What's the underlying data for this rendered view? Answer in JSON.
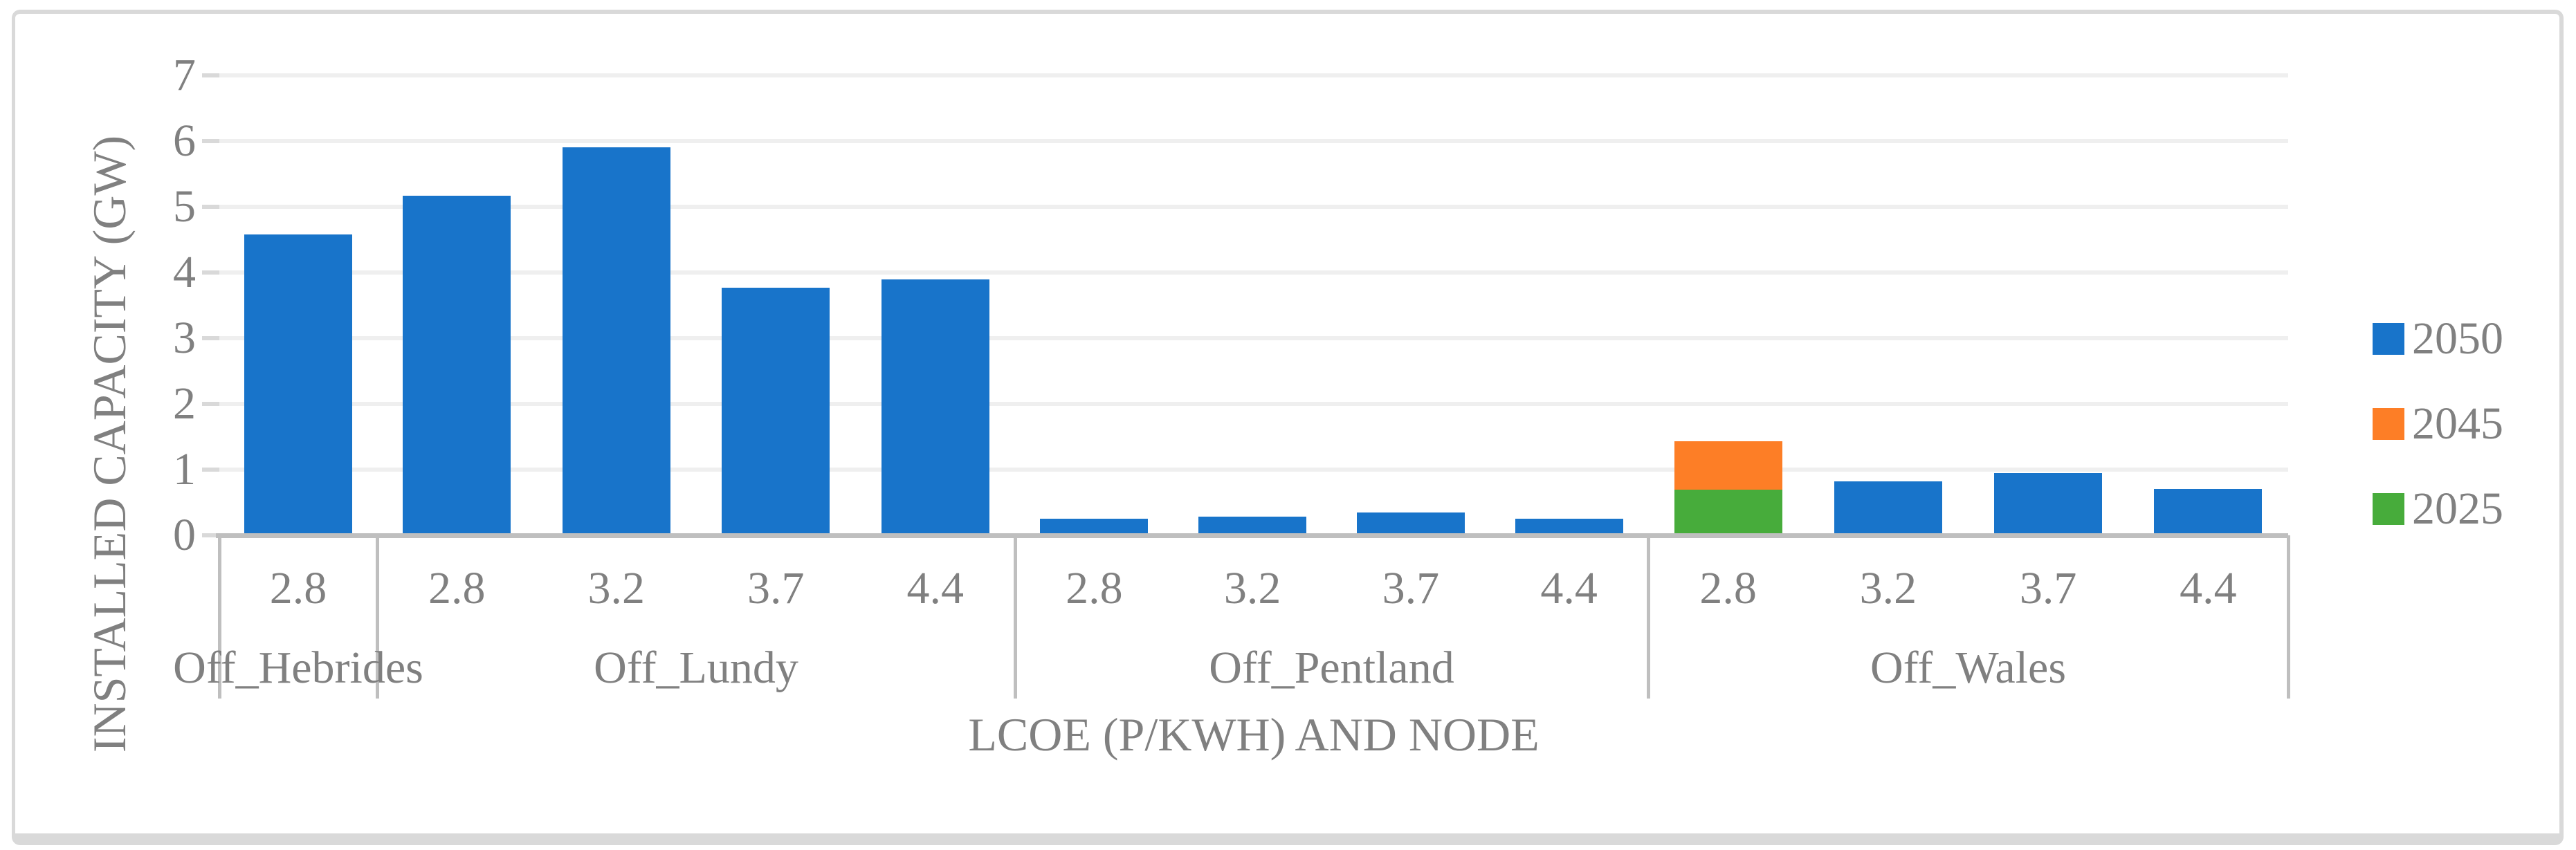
{
  "chart_data": {
    "type": "bar",
    "stacked": true,
    "title": "",
    "ylabel": "INSTALLED CAPACITY (GW)",
    "xlabel": "LCOE (P/KWH) AND NODE",
    "ylim": [
      0,
      7
    ],
    "ytick_labels": [
      "0",
      "1",
      "2",
      "3",
      "4",
      "5",
      "6",
      "7"
    ],
    "grid": true,
    "legend_position": "right",
    "groups": [
      {
        "node": "Off_Hebrides",
        "lcoe": [
          "2.8"
        ]
      },
      {
        "node": "Off_Lundy",
        "lcoe": [
          "2.8",
          "3.2",
          "3.7",
          "4.4"
        ]
      },
      {
        "node": "Off_Pentland",
        "lcoe": [
          "2.8",
          "3.2",
          "3.7",
          "4.4"
        ]
      },
      {
        "node": "Off_Wales",
        "lcoe": [
          "2.8",
          "3.2",
          "3.7",
          "4.4"
        ]
      }
    ],
    "categories": [
      "Off_Hebrides 2.8",
      "Off_Lundy 2.8",
      "Off_Lundy 3.2",
      "Off_Lundy 3.7",
      "Off_Lundy 4.4",
      "Off_Pentland 2.8",
      "Off_Pentland 3.2",
      "Off_Pentland 3.7",
      "Off_Pentland 4.4",
      "Off_Wales 2.8",
      "Off_Wales 3.2",
      "Off_Wales 3.7",
      "Off_Wales 4.4"
    ],
    "series": [
      {
        "name": "2025",
        "color": "#47AC3B",
        "values": [
          0,
          0,
          0,
          0,
          0,
          0,
          0,
          0,
          0,
          0.69,
          0,
          0,
          0
        ]
      },
      {
        "name": "2045",
        "color": "#FD7E26",
        "values": [
          0,
          0,
          0,
          0,
          0,
          0,
          0,
          0,
          0,
          0.74,
          0,
          0,
          0
        ]
      },
      {
        "name": "2050",
        "color": "#1874CA",
        "values": [
          4.58,
          5.17,
          5.91,
          3.77,
          3.89,
          0.25,
          0.28,
          0.35,
          0.25,
          0,
          0.82,
          0.95,
          0.71
        ]
      }
    ],
    "legend_entries": [
      {
        "label": "2050",
        "color": "#1874CA"
      },
      {
        "label": "2045",
        "color": "#FD7E26"
      },
      {
        "label": "2025",
        "color": "#47AC3B"
      }
    ]
  },
  "styles": {
    "text_color": "#808080",
    "axis_color": "#BFBFBF",
    "gridline_color": "#EFEFEF",
    "tick_color": "#D9D9D9",
    "frame_color": "#D9D9D9",
    "background": "#FFFFFF"
  }
}
